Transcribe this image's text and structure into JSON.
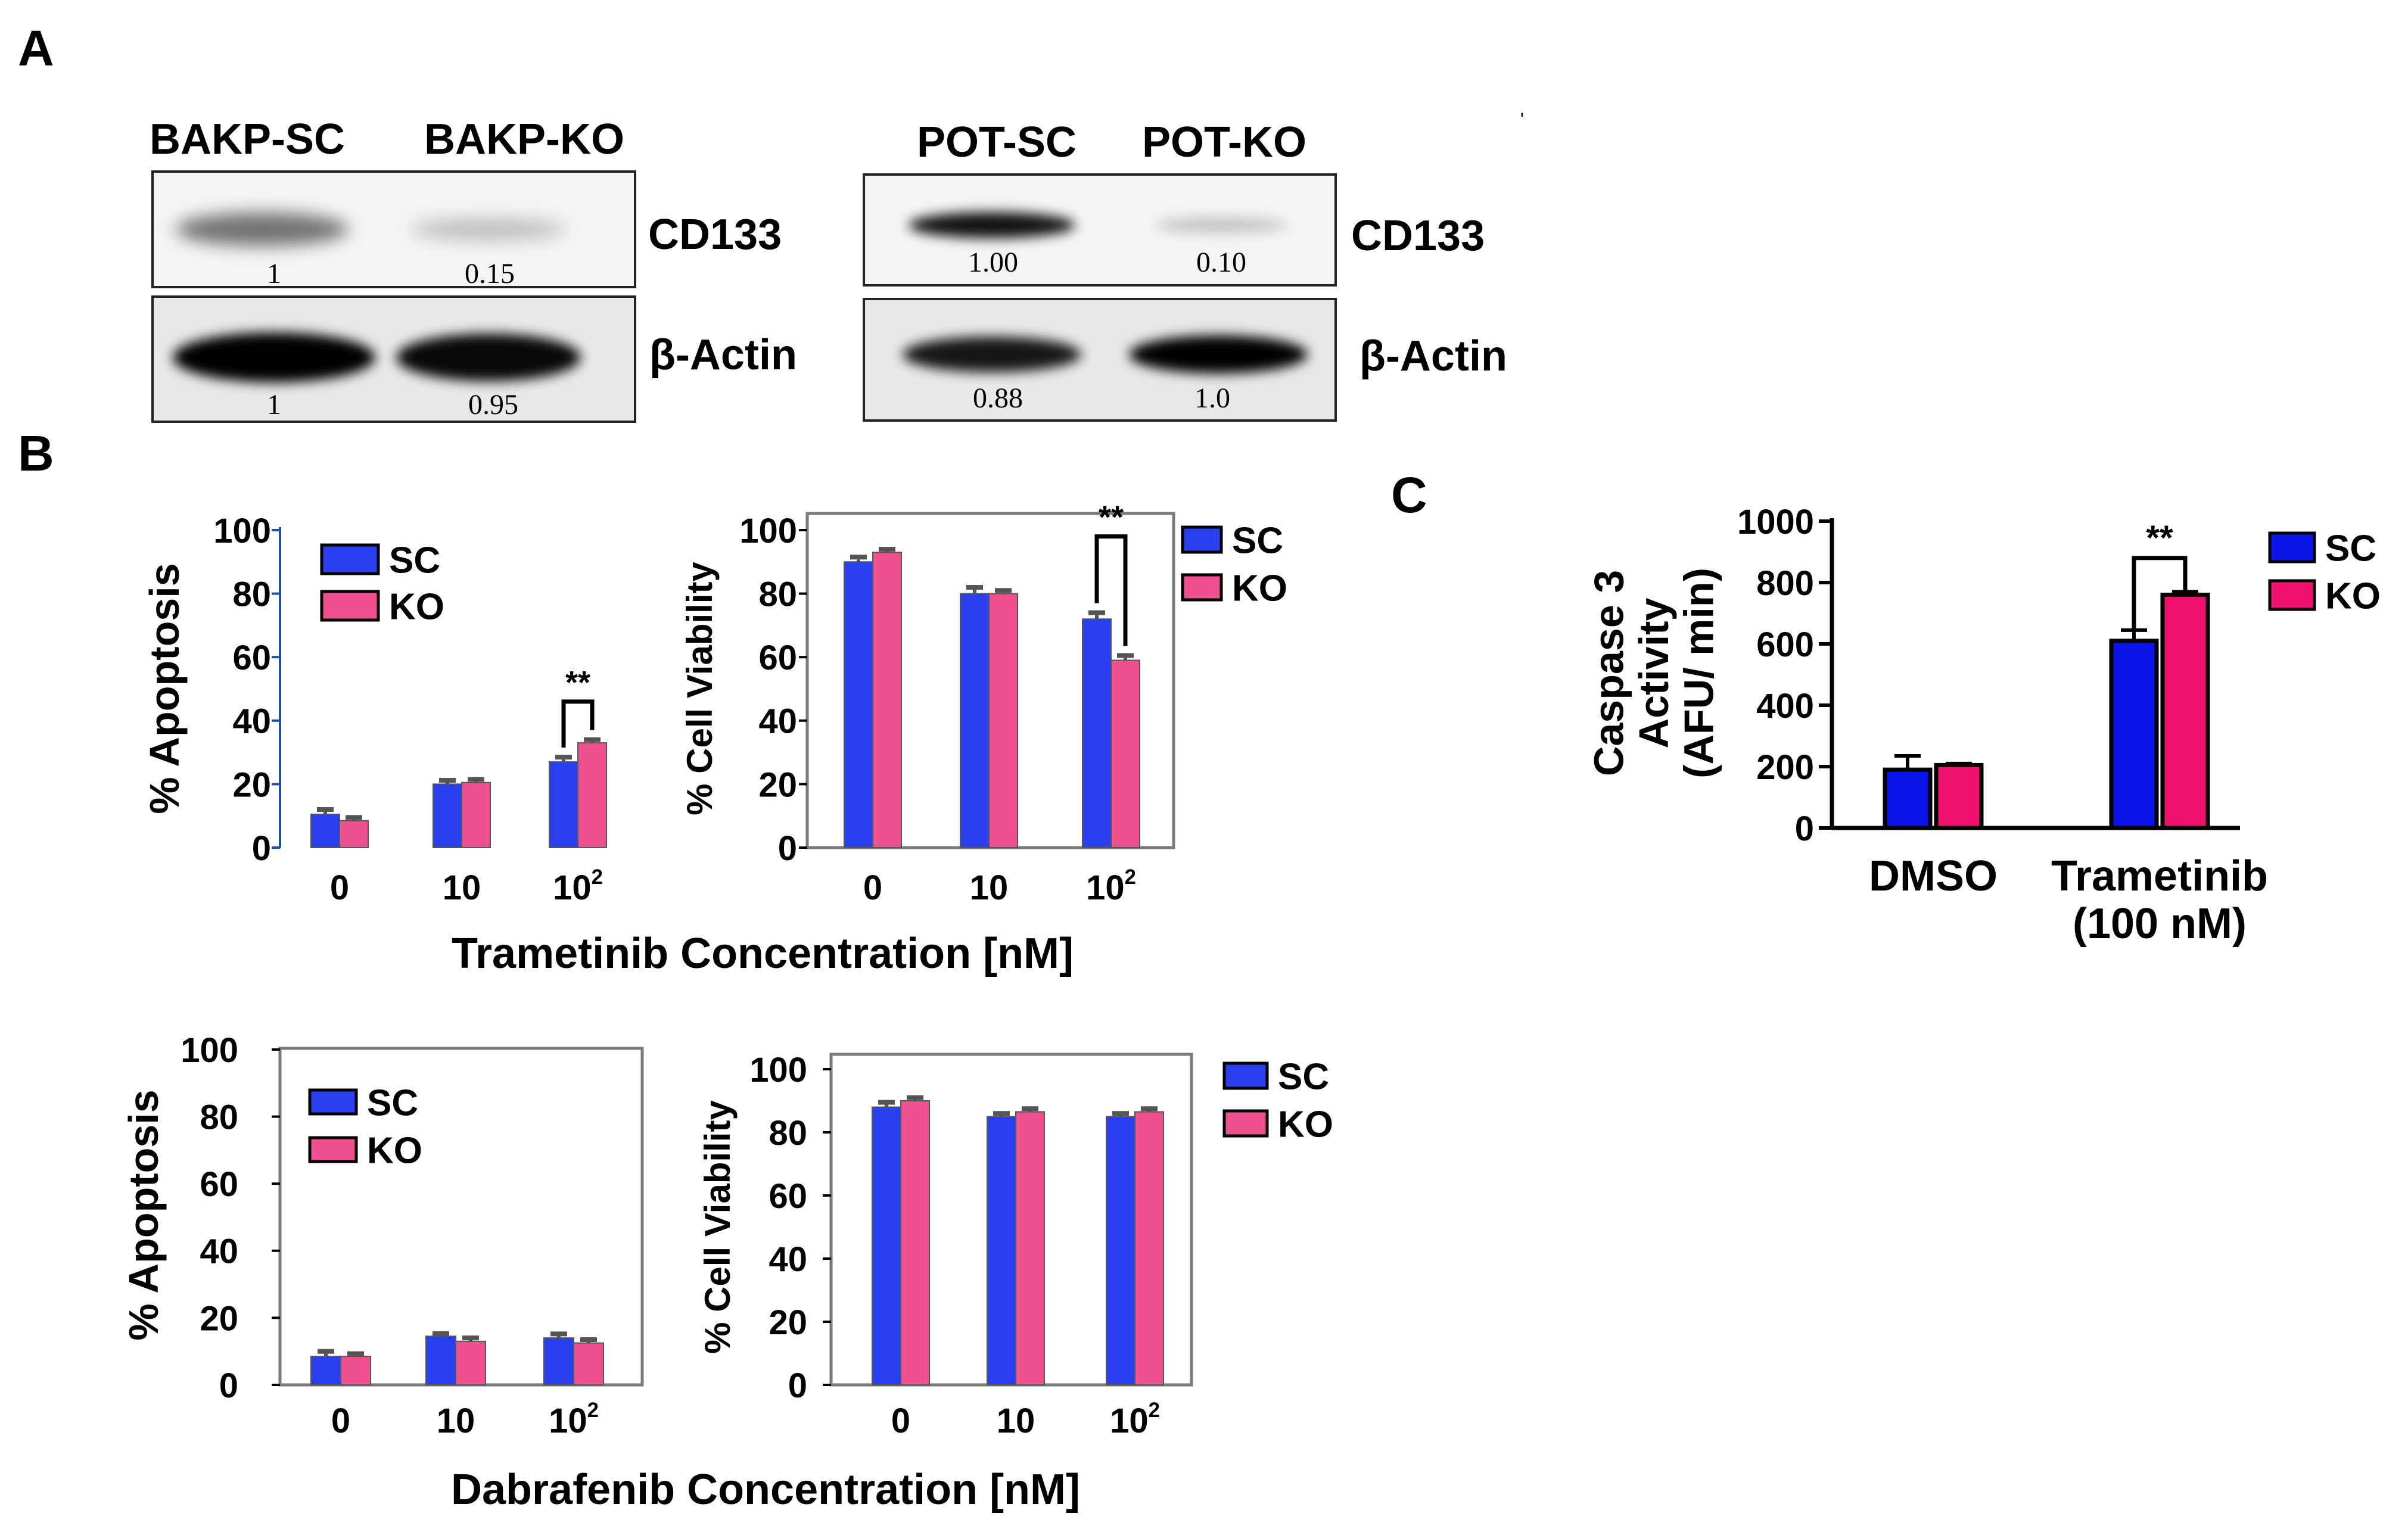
{
  "panel_labels": [
    "A",
    "B",
    "C"
  ],
  "blots": [
    {
      "lanes": [
        "BAKP-SC",
        "BAKP-KO"
      ],
      "rows": [
        {
          "protein": "CD133",
          "values": [
            "1",
            "0.15"
          ],
          "intensity": [
            0.45,
            0.06
          ]
        },
        {
          "protein": "β-Actin",
          "values": [
            "1",
            "0.95"
          ],
          "intensity": [
            1.0,
            0.95
          ]
        }
      ]
    },
    {
      "lanes": [
        "POT-SC",
        "POT-KO"
      ],
      "rows": [
        {
          "protein": "CD133",
          "values": [
            "1.00",
            "0.10"
          ],
          "intensity": [
            0.9,
            0.04
          ]
        },
        {
          "protein": "β-Actin",
          "values": [
            "0.88",
            "1.0"
          ],
          "intensity": [
            0.88,
            1.0
          ]
        }
      ]
    }
  ],
  "stray_mark": "'",
  "colors": {
    "SC": "#2a3ff0",
    "KO": "#f0508f",
    "C_SC": "#0b14e8",
    "C_KO": "#f0116e",
    "axis": "#000000",
    "frame": "#7a7a7a",
    "bracket": "#000000"
  },
  "group_xlabels": {
    "trametinib": "Trametinib Concentration [nM]",
    "dabrafenib": "Dabrafenib Concentration [nM]"
  },
  "chart_data": [
    {
      "id": "b1",
      "type": "bar",
      "framed": false,
      "categories": [
        {
          "base": "0",
          "sup": ""
        },
        {
          "base": "10",
          "sup": ""
        },
        {
          "base": "10",
          "sup": "2"
        }
      ],
      "series": [
        {
          "name": "SC",
          "values": [
            10.5,
            20,
            27
          ],
          "errors": [
            1.5,
            1.2,
            1.5
          ]
        },
        {
          "name": "KO",
          "values": [
            8.5,
            20.5,
            33
          ],
          "errors": [
            1.0,
            1.0,
            1.0
          ]
        }
      ],
      "ylabel": "% Apoptosis",
      "ylim": [
        0,
        100
      ],
      "yticks": [
        0,
        20,
        40,
        60,
        80,
        100
      ],
      "legend": [
        "SC",
        "KO"
      ],
      "legend_position": "top-left",
      "significance": [
        {
          "category_index": 2,
          "label": "**"
        }
      ]
    },
    {
      "id": "b2",
      "type": "bar",
      "framed": true,
      "categories": [
        {
          "base": "0",
          "sup": ""
        },
        {
          "base": "10",
          "sup": ""
        },
        {
          "base": "10",
          "sup": "2"
        }
      ],
      "series": [
        {
          "name": "SC",
          "values": [
            90,
            80,
            72
          ],
          "errors": [
            1.5,
            2.0,
            2.0
          ]
        },
        {
          "name": "KO",
          "values": [
            93,
            80,
            59
          ],
          "errors": [
            1.0,
            1.0,
            1.5
          ]
        }
      ],
      "ylabel": "% Cell Viability",
      "ylim": [
        0,
        100
      ],
      "yticks": [
        0,
        20,
        40,
        60,
        80,
        100
      ],
      "legend": [
        "SC",
        "KO"
      ],
      "legend_position": "outside-right",
      "significance": [
        {
          "category_index": 2,
          "label": "**"
        }
      ]
    },
    {
      "id": "b3",
      "type": "bar",
      "framed": true,
      "categories": [
        {
          "base": "0",
          "sup": ""
        },
        {
          "base": "10",
          "sup": ""
        },
        {
          "base": "10",
          "sup": "2"
        }
      ],
      "series": [
        {
          "name": "SC",
          "values": [
            8.5,
            14.5,
            14
          ],
          "errors": [
            1.5,
            0.8,
            1.2
          ]
        },
        {
          "name": "KO",
          "values": [
            8.5,
            13,
            12.5
          ],
          "errors": [
            0.8,
            1.0,
            1.0
          ]
        }
      ],
      "ylabel": "% Apoptosis",
      "ylim": [
        0,
        100
      ],
      "yticks": [
        0,
        20,
        40,
        60,
        80,
        100
      ],
      "legend": [
        "SC",
        "KO"
      ],
      "legend_position": "top-left",
      "significance": []
    },
    {
      "id": "b4",
      "type": "bar",
      "framed": true,
      "categories": [
        {
          "base": "0",
          "sup": ""
        },
        {
          "base": "10",
          "sup": ""
        },
        {
          "base": "10",
          "sup": "2"
        }
      ],
      "series": [
        {
          "name": "SC",
          "values": [
            88,
            85,
            85
          ],
          "errors": [
            1.5,
            1.0,
            1.0
          ]
        },
        {
          "name": "KO",
          "values": [
            90,
            86.5,
            86.5
          ],
          "errors": [
            1.0,
            1.0,
            1.0
          ]
        }
      ],
      "ylabel": "% Cell Viability",
      "ylim": [
        0,
        100
      ],
      "yticks": [
        0,
        20,
        40,
        60,
        80,
        100
      ],
      "legend": [
        "SC",
        "KO"
      ],
      "legend_position": "outside-right",
      "significance": []
    },
    {
      "id": "c",
      "type": "bar",
      "framed": false,
      "categories": [
        {
          "base": "DMSO",
          "sup": ""
        },
        {
          "base": "Trametinib",
          "sup": "",
          "line2": "(100 nM)"
        }
      ],
      "series": [
        {
          "name": "SC",
          "values": [
            190,
            610
          ],
          "errors": [
            45,
            35
          ]
        },
        {
          "name": "KO",
          "values": [
            205,
            760
          ],
          "errors": [
            5,
            10
          ]
        }
      ],
      "ylabel_lines": [
        "Caspase 3",
        "Activity",
        "(AFU/ min)"
      ],
      "ylim": [
        0,
        1000
      ],
      "yticks": [
        0,
        200,
        400,
        600,
        800,
        1000
      ],
      "legend": [
        "SC",
        "KO"
      ],
      "legend_position": "outside-right",
      "significance": [
        {
          "category_index": 1,
          "label": "**"
        }
      ]
    }
  ]
}
